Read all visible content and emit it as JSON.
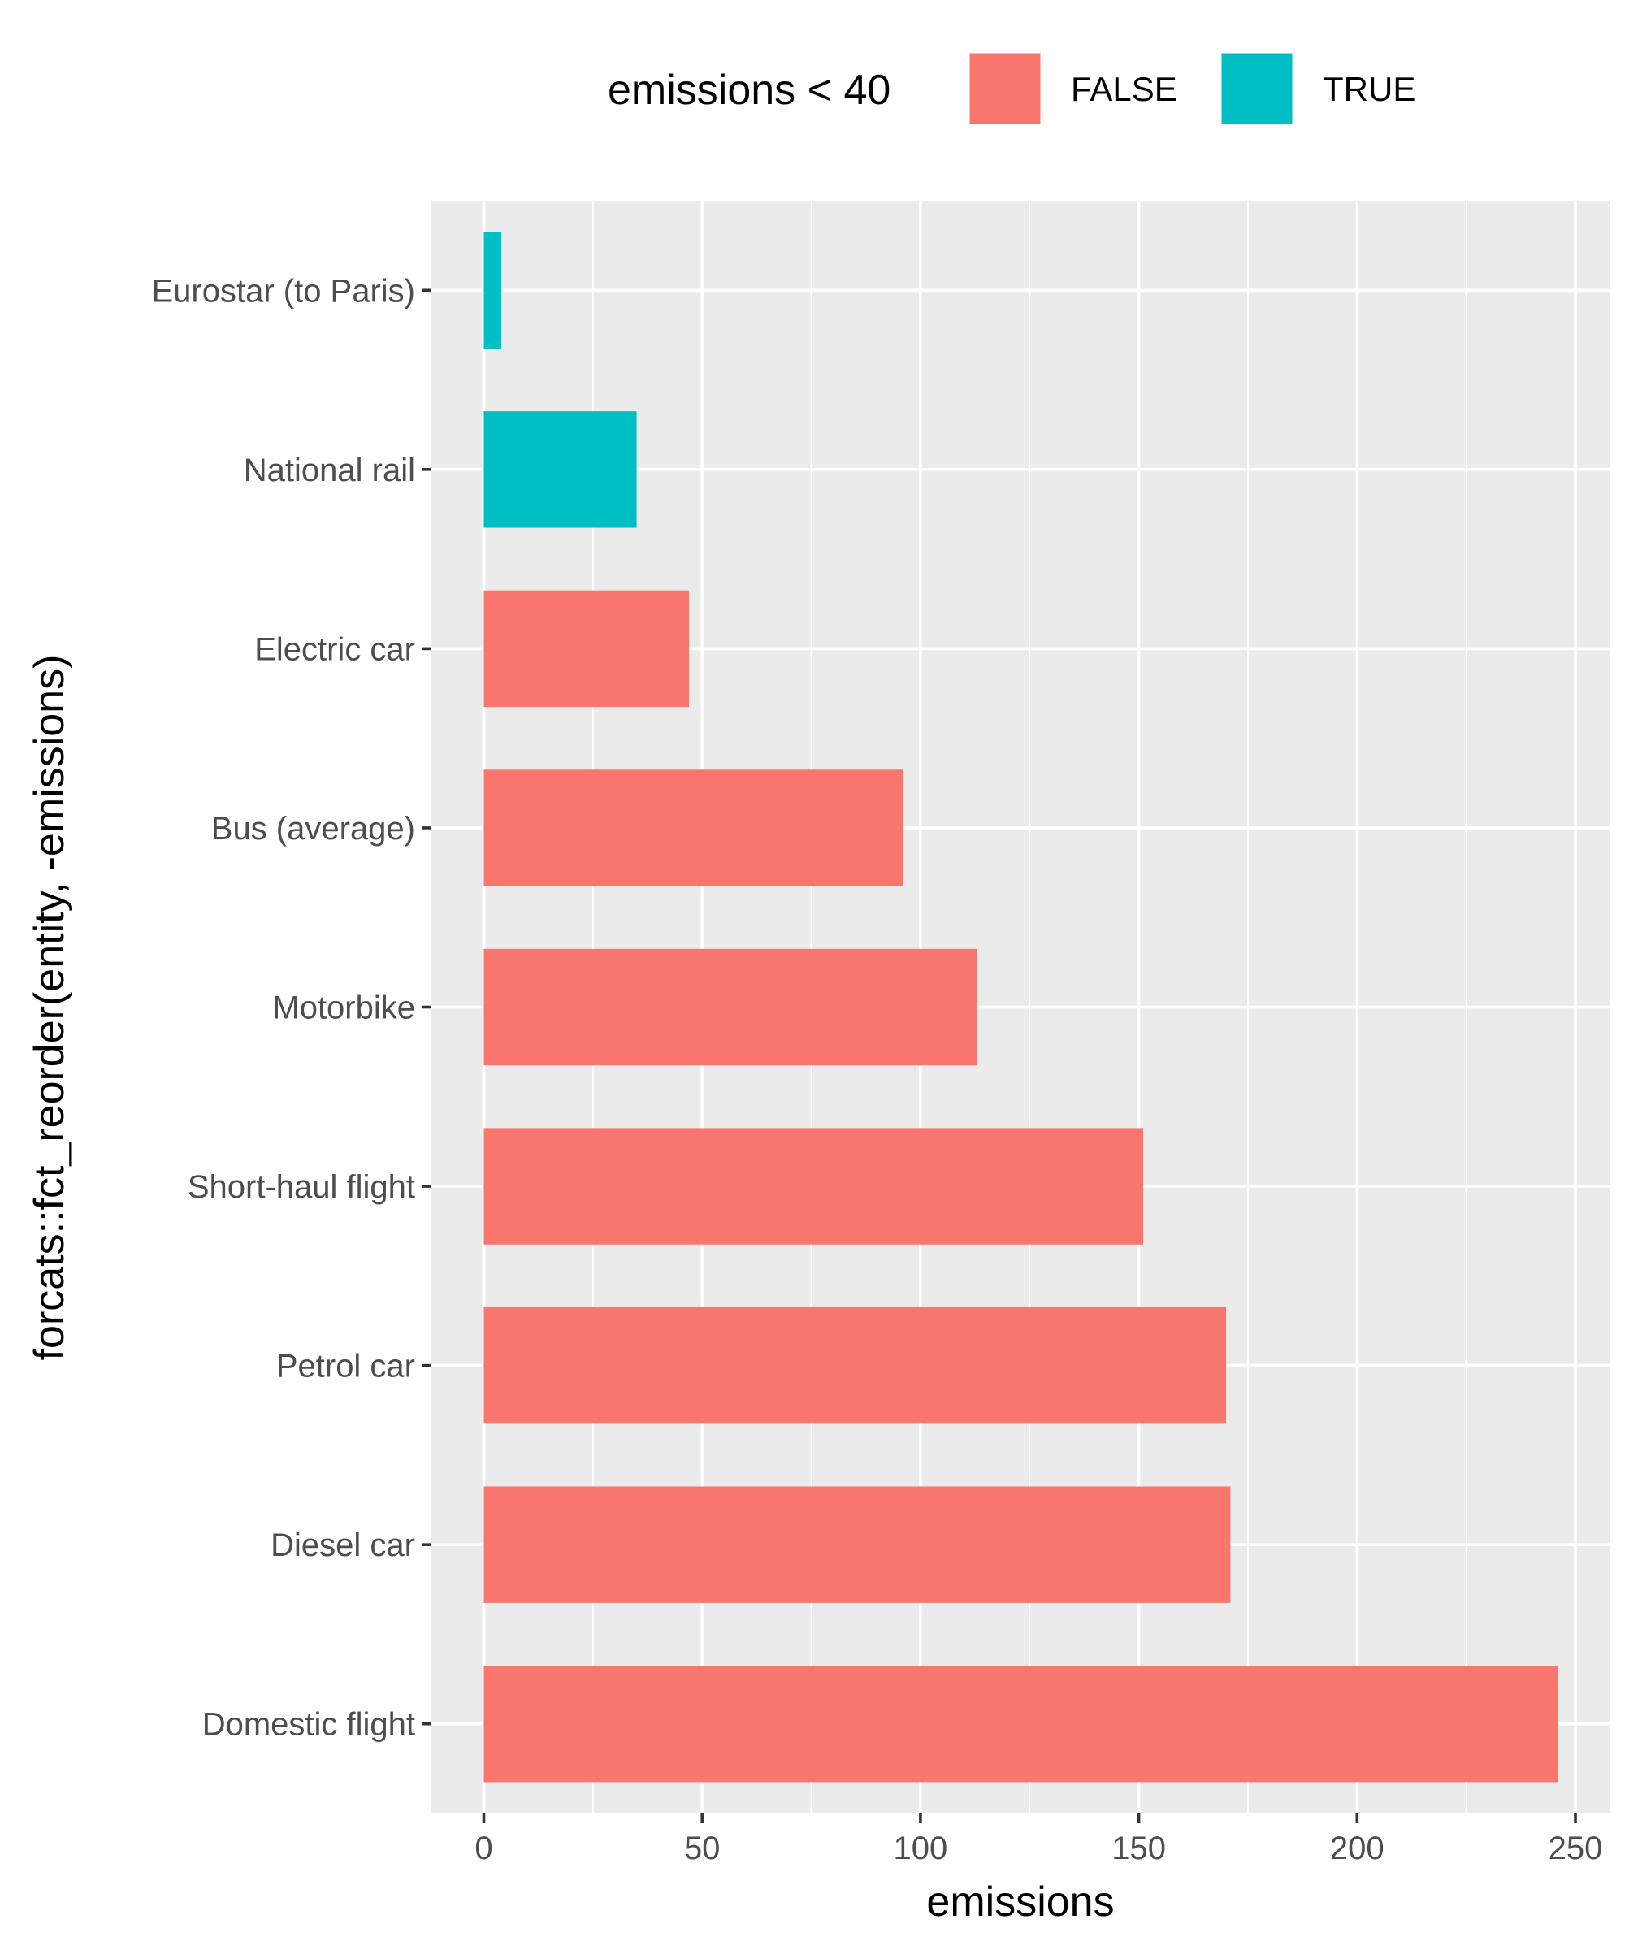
{
  "chart_data": {
    "type": "bar",
    "orientation": "horizontal",
    "categories": [
      "Eurostar (to Paris)",
      "National rail",
      "Electric car",
      "Bus (average)",
      "Motorbike",
      "Short-haul flight",
      "Petrol car",
      "Diesel car",
      "Domestic flight"
    ],
    "values": [
      4,
      35,
      47,
      96,
      113,
      151,
      170,
      171,
      246
    ],
    "groups": [
      "TRUE",
      "TRUE",
      "FALSE",
      "FALSE",
      "FALSE",
      "FALSE",
      "FALSE",
      "FALSE",
      "FALSE"
    ],
    "xlabel": "emissions",
    "ylabel": "forcats::fct_reorder(entity, -emissions)",
    "xlim": [
      -12,
      258
    ],
    "xticks": [
      0,
      50,
      100,
      150,
      200,
      250
    ],
    "grid": true,
    "legend": {
      "title": "emissions < 40",
      "position": "top",
      "entries": [
        {
          "label": "FALSE",
          "color": "#F8766D"
        },
        {
          "label": "TRUE",
          "color": "#00BFC4"
        }
      ]
    },
    "colors": {
      "FALSE": "#F8766D",
      "TRUE": "#00BFC4",
      "panel": "#EBEBEB",
      "grid": "#FFFFFF"
    }
  }
}
